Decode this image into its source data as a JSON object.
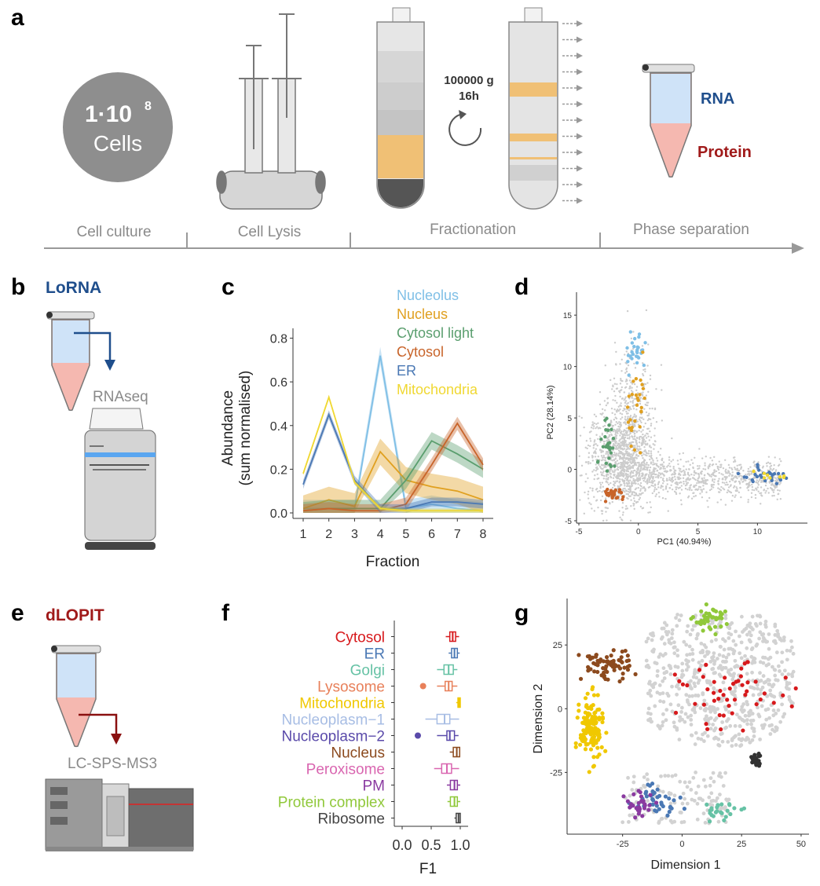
{
  "panels": {
    "a": "a",
    "b": "b",
    "c": "c",
    "d": "d",
    "e": "e",
    "f": "f",
    "g": "g"
  },
  "panel_a": {
    "cells_num": "1·10",
    "cells_exp": "8",
    "cells_label": "Cells",
    "spin_speed": "100000 g",
    "spin_time": "16h",
    "rna": "RNA",
    "protein": "Protein",
    "stages": [
      "Cell culture",
      "Cell Lysis",
      "Fractionation",
      "Phase separation"
    ]
  },
  "panel_b": {
    "title": "LoRNA",
    "method": "RNAseq"
  },
  "panel_e": {
    "title": "dLOPIT",
    "method": "LC-SPS-MS3"
  },
  "colors": {
    "lorna_blue": "#1f4e8c",
    "dlopit_red": "#a01a1a",
    "nucleolus": "#7fbfe6",
    "nucleus": "#e0a020",
    "cytosol_light": "#5a9e6e",
    "cytosol": "#c8642a",
    "er": "#4a78b4",
    "mitochondria": "#f0d832"
  },
  "chart_data": [
    {
      "type": "line",
      "panel": "c",
      "x": [
        1,
        2,
        3,
        4,
        5,
        6,
        7,
        8
      ],
      "xlabel": "Fraction",
      "ylabel": "Abundance",
      "ylabel2": "(sum normalised)",
      "ylim": [
        0,
        0.82
      ],
      "yticks": [
        "0.0",
        "0.2",
        "0.4",
        "0.6",
        "0.8"
      ],
      "xticks": [
        "1",
        "2",
        "3",
        "4",
        "5",
        "6",
        "7",
        "8"
      ],
      "series": [
        {
          "name": "Nucleolus",
          "color": "#7fbfe6",
          "values": [
            0.02,
            0.02,
            0.02,
            0.72,
            0.02,
            0.04,
            0.02,
            0.01
          ],
          "band": 0.04
        },
        {
          "name": "Nucleus",
          "color": "#e0a020",
          "values": [
            0.02,
            0.06,
            0.03,
            0.28,
            0.15,
            0.12,
            0.1,
            0.06
          ],
          "band": 0.06
        },
        {
          "name": "Cytosol light",
          "color": "#5a9e6e",
          "values": [
            0.01,
            0.02,
            0.02,
            0.02,
            0.15,
            0.33,
            0.27,
            0.2
          ],
          "band": 0.04
        },
        {
          "name": "Cytosol",
          "color": "#c8642a",
          "values": [
            0.01,
            0.02,
            0.01,
            0.01,
            0.04,
            0.22,
            0.41,
            0.22
          ],
          "band": 0.03
        },
        {
          "name": "ER",
          "color": "#4a78b4",
          "values": [
            0.13,
            0.45,
            0.15,
            0.02,
            0.02,
            0.05,
            0.05,
            0.04
          ],
          "band": 0.02
        },
        {
          "name": "Mitochondria",
          "color": "#f0d832",
          "values": [
            0.18,
            0.53,
            0.14,
            0.02,
            0.01,
            0.01,
            0.01,
            0.01
          ],
          "band": 0.01
        }
      ]
    },
    {
      "type": "scatter",
      "panel": "d",
      "xlabel": "PC1 (40.94%)",
      "ylabel": "PC2 (28.14%)",
      "xlim": [
        -5,
        14
      ],
      "ylim": [
        -5,
        17
      ],
      "xticks": [
        "-5",
        "0",
        "5",
        "10"
      ],
      "yticks": [
        "-5",
        "0",
        "5",
        "10",
        "15"
      ],
      "clusters": [
        {
          "name": "background",
          "color": "#c8c8c8",
          "cx": 0,
          "cy": 0,
          "note": "grey cloud"
        },
        {
          "name": "Nucleolus",
          "color": "#7fbfe6",
          "cx": -0.2,
          "cy": 11.5
        },
        {
          "name": "Nucleus",
          "color": "#e0a020",
          "cx": 0.0,
          "cy": 6.5
        },
        {
          "name": "Cytosol light",
          "color": "#5a9e6e",
          "cx": -2.5,
          "cy": 1.8
        },
        {
          "name": "Cytosol",
          "color": "#c8642a",
          "cx": -2.0,
          "cy": -2.5
        },
        {
          "name": "ER",
          "color": "#4a78b4",
          "cx": 10.5,
          "cy": -0.7
        },
        {
          "name": "Mitochondria",
          "color": "#f0d832",
          "cx": 11.2,
          "cy": -0.9
        }
      ]
    },
    {
      "type": "boxplot",
      "panel": "f",
      "xlabel": "F1",
      "xlim": [
        0,
        1
      ],
      "xticks": [
        "0.0",
        "0.5",
        "1.0"
      ],
      "categories": [
        "Cytosol",
        "ER",
        "Golgi",
        "Lysosome",
        "Mitochondria",
        "Nucleoplasm−1",
        "Nucleoplasm−2",
        "Nucleus",
        "Peroxisome",
        "PM",
        "Protein complex",
        "Ribosome"
      ],
      "colors": [
        "#d7191c",
        "#4a78b4",
        "#66c2a5",
        "#e8805a",
        "#f0c800",
        "#a7bde4",
        "#5a4aaa",
        "#8c4a1e",
        "#d966b0",
        "#8a3aa0",
        "#90c83a",
        "#444444"
      ],
      "medians": [
        0.87,
        0.9,
        0.8,
        0.8,
        0.98,
        0.73,
        0.82,
        0.94,
        0.77,
        0.9,
        0.9,
        0.97
      ],
      "q1": [
        0.82,
        0.85,
        0.72,
        0.74,
        0.96,
        0.6,
        0.77,
        0.88,
        0.68,
        0.83,
        0.83,
        0.93
      ],
      "q3": [
        0.92,
        0.95,
        0.88,
        0.86,
        1.0,
        0.82,
        0.9,
        0.99,
        0.85,
        0.95,
        0.95,
        1.0
      ],
      "wlo": [
        0.75,
        0.8,
        0.6,
        0.6,
        0.93,
        0.4,
        0.6,
        0.82,
        0.55,
        0.77,
        0.78,
        0.9
      ],
      "whi": [
        0.98,
        0.99,
        0.95,
        0.95,
        1.0,
        0.98,
        0.97,
        1.0,
        0.98,
        1.0,
        1.0,
        1.0
      ],
      "outliers": [
        [],
        [],
        [],
        [
          0.36
        ],
        [],
        [],
        [
          0.27
        ],
        [],
        [],
        [],
        [],
        []
      ]
    },
    {
      "type": "scatter",
      "panel": "g",
      "xlabel": "Dimension 1",
      "ylabel": "Dimension 2",
      "xlim": [
        -47,
        52
      ],
      "ylim": [
        -48,
        42
      ],
      "xticks": [
        "-25",
        "0",
        "25",
        "50"
      ],
      "yticks": [
        "-25",
        "0",
        "25"
      ],
      "clusters": [
        {
          "name": "background",
          "color": "#cfcfcf",
          "note": "grey points"
        },
        {
          "name": "Mitochondria",
          "color": "#f0c800",
          "cx": -38,
          "cy": -8
        },
        {
          "name": "Nucleus",
          "color": "#8c4a1e",
          "cx": -32,
          "cy": 17
        },
        {
          "name": "Protein complex",
          "color": "#90c83a",
          "cx": 12,
          "cy": 35
        },
        {
          "name": "Cytosol",
          "color": "#d7191c",
          "cx": 20,
          "cy": 5
        },
        {
          "name": "Ribosome",
          "color": "#333333",
          "cx": 31,
          "cy": -20
        },
        {
          "name": "ER",
          "color": "#4a78b4",
          "cx": -10,
          "cy": -35
        },
        {
          "name": "Nucleoplasm−2",
          "color": "#8a3aa0",
          "cx": -18,
          "cy": -38
        },
        {
          "name": "Lysosome",
          "color": "#66c2a5",
          "cx": 18,
          "cy": -40
        }
      ]
    }
  ]
}
